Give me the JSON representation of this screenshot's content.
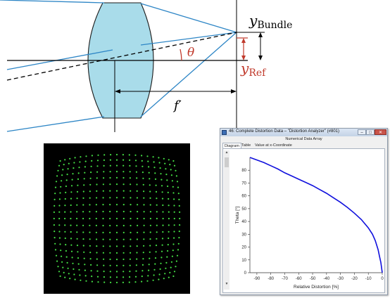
{
  "diagram": {
    "label_y_bundle_main": "y",
    "label_y_bundle_sub": "Bundle",
    "label_y_ref_main": "y",
    "label_y_ref_sub": "Ref",
    "label_theta": "θ",
    "label_focal": "f′",
    "lens_color": "#a9dcea",
    "ray_color": "#2e86c6",
    "ref_color": "#c0392b"
  },
  "grid_image": {
    "dot_color": "#44dd44",
    "rows": 21,
    "cols": 21,
    "distortion": "barrel"
  },
  "window": {
    "title": "46: Complete Distortion Data – \"Distortion Analyzer\" (#801)",
    "minimize_icon": "minimize-icon",
    "maximize_icon": "maximize-icon",
    "close_icon": "close-icon",
    "minimize_glyph": "–",
    "maximize_glyph": "□",
    "close_glyph": "✕",
    "array_label": "Numerical Data Array",
    "tabs": [
      {
        "label": "Diagram"
      },
      {
        "label": "Table"
      },
      {
        "label": "Value at x-Coordinate"
      }
    ],
    "scroll_up_glyph": "▲",
    "scroll_down_glyph": "▼"
  },
  "chart_data": {
    "type": "line",
    "xlabel": "Relative Distortion [%]",
    "ylabel": "Theta [°]",
    "xlim": [
      -95,
      0
    ],
    "ylim": [
      0,
      90
    ],
    "xticks": [
      -90,
      -80,
      -70,
      -60,
      -50,
      -40,
      -30,
      -20,
      -10,
      0
    ],
    "yticks": [
      0,
      10,
      20,
      30,
      40,
      50,
      60,
      70,
      80
    ],
    "grid": false,
    "line_color": "#1010dd",
    "series": [
      {
        "x": [
          -95,
          -90,
          -85,
          -80,
          -75,
          -70,
          -65,
          -60,
          -55,
          -50,
          -45,
          -40,
          -35,
          -30,
          -25,
          -20,
          -15,
          -10,
          -7,
          -5,
          -3,
          -2,
          -1,
          0
        ],
        "y": [
          90,
          88,
          86,
          83.5,
          81,
          78,
          75.5,
          73,
          70.5,
          68,
          65,
          62,
          58.5,
          55,
          51,
          46.5,
          41.5,
          35,
          30,
          25,
          18,
          13,
          8,
          0
        ]
      }
    ]
  }
}
